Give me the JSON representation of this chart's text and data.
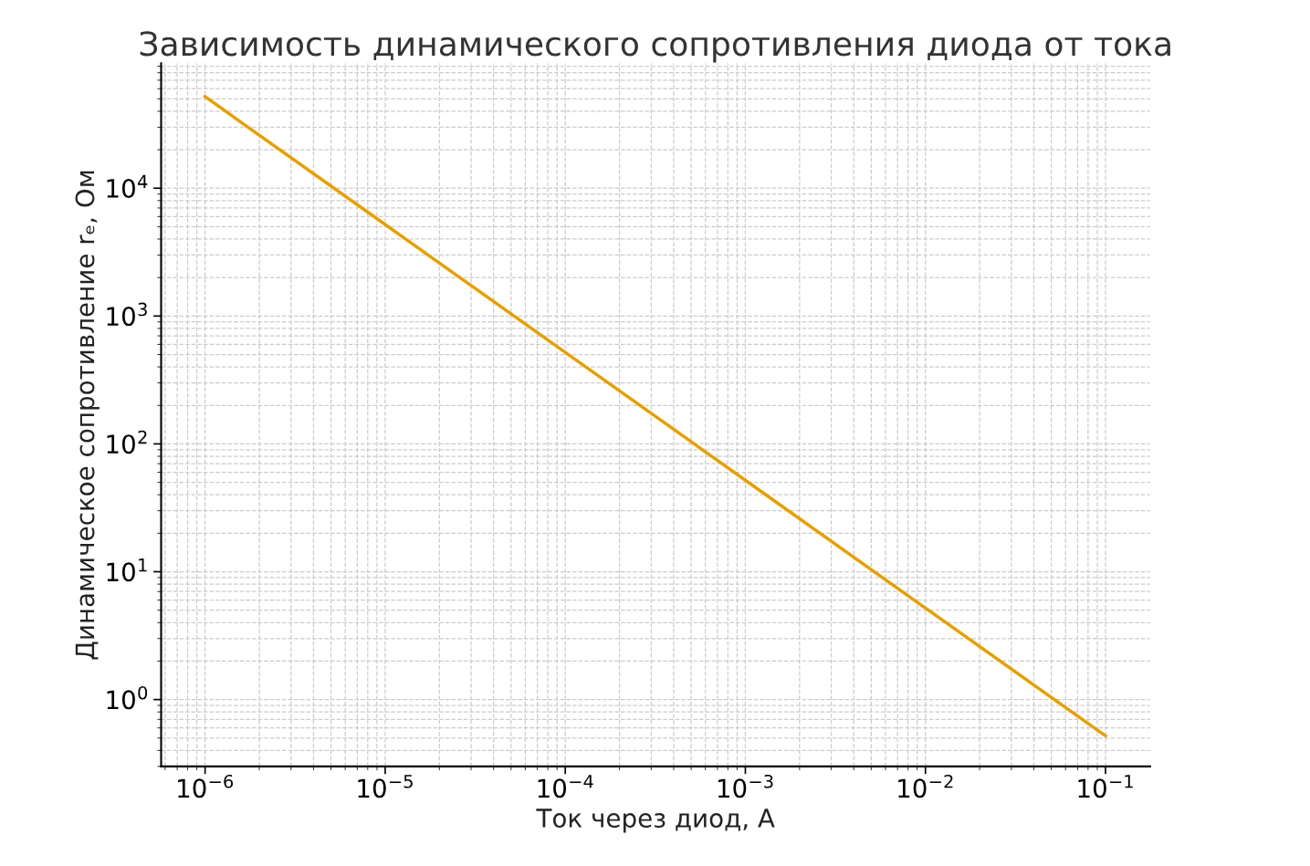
{
  "chart_data": {
    "type": "line",
    "title": "Зависимость динамического сопротивления диода от тока",
    "xlabel": "Ток через диод, А",
    "ylabel": "Динамическое сопротивление rₑ, Ом",
    "x": [
      1e-06,
      1e-05,
      0.0001,
      0.001,
      0.01,
      0.1
    ],
    "series": [
      {
        "color": "#e69f00",
        "values": [
          52000,
          5200,
          520,
          52,
          5.2,
          0.52
        ]
      }
    ],
    "log": "xy",
    "grid": true,
    "line_style": "solid",
    "marker": "none",
    "xlim": [
      5.7e-07,
      0.177
    ],
    "ylim": [
      0.3,
      95000
    ],
    "xticks": [
      {
        "value": 1e-06,
        "label": "10$^{−6}$"
      },
      {
        "value": 1e-05,
        "label": "10$^{−5}$"
      },
      {
        "value": 0.0001,
        "label": "10$^{−4}$"
      },
      {
        "value": 0.001,
        "label": "10$^{−3}$"
      },
      {
        "value": 0.01,
        "label": "10$^{−2}$"
      },
      {
        "value": 0.1,
        "label": "10$^{−1}$"
      }
    ],
    "yticks": [
      {
        "value": 1,
        "label": "10$^{0}$"
      },
      {
        "value": 10,
        "label": "10$^{1}$"
      },
      {
        "value": 100,
        "label": "10$^{2}$"
      },
      {
        "value": 1000,
        "label": "10$^{3}$"
      },
      {
        "value": 10000,
        "label": "10$^{4}$"
      }
    ]
  }
}
